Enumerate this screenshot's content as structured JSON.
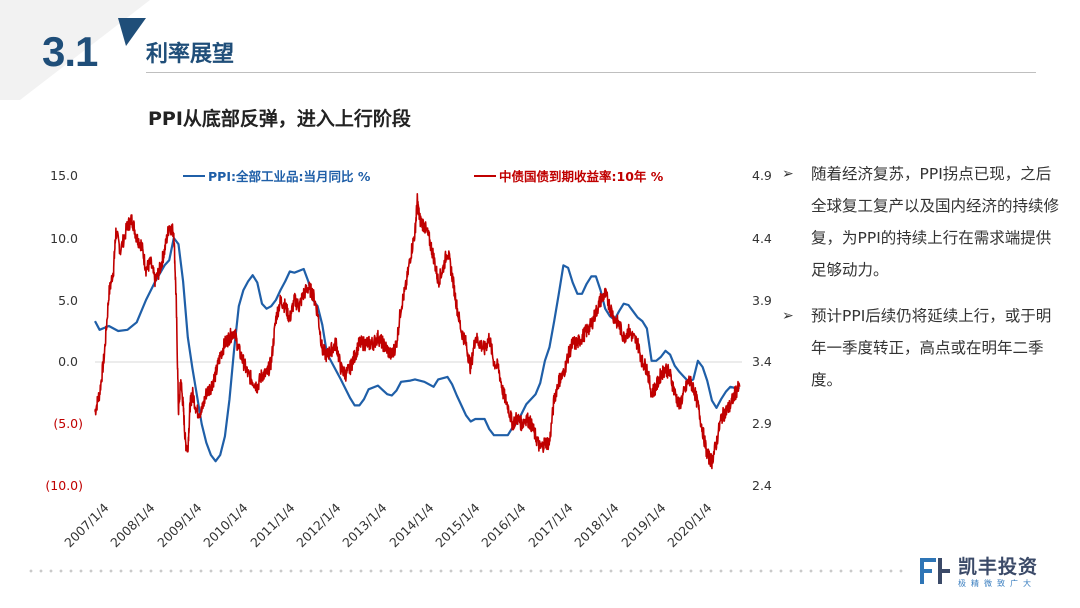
{
  "section": {
    "number": "3.1",
    "title": "利率展望"
  },
  "subtitle": "PPI从底部反弹，进入上行阶段",
  "bullets": [
    "随着经济复苏，PPI拐点已现，之后全球复工复产以及国内经济的持续修复，为PPI的持续上行在需求端提供足够动力。",
    "预计PPI后续仍将延续上行，或于明年一季度转正，高点或在明年二季度。"
  ],
  "bullet_marker": "➢",
  "logo": {
    "name": "凯丰投资",
    "tagline": "极精微致广大"
  },
  "colors": {
    "brand_blue": "#1f4e79",
    "ppi": "#1f5fa8",
    "yield": "#c00000"
  },
  "chart_data": {
    "type": "line",
    "y_left": {
      "ticks": [
        "15.0",
        "10.0",
        "5.0",
        "0.0",
        "(5.0)",
        "(10.0)"
      ],
      "range": [
        -10,
        15
      ]
    },
    "y_right": {
      "ticks": [
        "4.9",
        "4.4",
        "3.9",
        "3.4",
        "2.9",
        "2.4"
      ],
      "range": [
        2.4,
        4.9
      ]
    },
    "x_ticks": [
      "2007/1/4",
      "2008/1/4",
      "2009/1/4",
      "2010/1/4",
      "2011/1/4",
      "2012/1/4",
      "2013/1/4",
      "2014/1/4",
      "2015/1/4",
      "2016/1/4",
      "2017/1/4",
      "2018/1/4",
      "2019/1/4",
      "2020/1/4"
    ],
    "series": [
      {
        "name": "PPI:全部工业品:当月同比 %",
        "axis": "left",
        "color": "#1f5fa8",
        "points": [
          [
            2007.0,
            3.3
          ],
          [
            2007.1,
            2.6
          ],
          [
            2007.3,
            2.9
          ],
          [
            2007.5,
            2.5
          ],
          [
            2007.7,
            2.6
          ],
          [
            2007.9,
            3.2
          ],
          [
            2008.1,
            5.0
          ],
          [
            2008.3,
            6.5
          ],
          [
            2008.5,
            7.8
          ],
          [
            2008.6,
            8.2
          ],
          [
            2008.7,
            10.0
          ],
          [
            2008.8,
            9.5
          ],
          [
            2008.9,
            6.5
          ],
          [
            2009.0,
            2.0
          ],
          [
            2009.1,
            -0.5
          ],
          [
            2009.3,
            -5.0
          ],
          [
            2009.4,
            -6.5
          ],
          [
            2009.5,
            -7.5
          ],
          [
            2009.6,
            -8.0
          ],
          [
            2009.7,
            -7.5
          ],
          [
            2009.8,
            -6.0
          ],
          [
            2009.9,
            -3.0
          ],
          [
            2010.0,
            1.0
          ],
          [
            2010.1,
            4.5
          ],
          [
            2010.2,
            5.8
          ],
          [
            2010.3,
            6.5
          ],
          [
            2010.4,
            7.0
          ],
          [
            2010.5,
            6.4
          ],
          [
            2010.6,
            4.7
          ],
          [
            2010.7,
            4.3
          ],
          [
            2010.8,
            4.5
          ],
          [
            2010.9,
            5.0
          ],
          [
            2011.0,
            5.8
          ],
          [
            2011.1,
            6.5
          ],
          [
            2011.2,
            7.3
          ],
          [
            2011.3,
            7.2
          ],
          [
            2011.5,
            7.5
          ],
          [
            2011.6,
            6.5
          ],
          [
            2011.7,
            5.0
          ],
          [
            2011.8,
            4.5
          ],
          [
            2011.9,
            3.0
          ],
          [
            2012.0,
            0.7
          ],
          [
            2012.1,
            0.0
          ],
          [
            2012.3,
            -1.4
          ],
          [
            2012.5,
            -2.9
          ],
          [
            2012.6,
            -3.5
          ],
          [
            2012.7,
            -3.5
          ],
          [
            2012.8,
            -3.0
          ],
          [
            2012.9,
            -2.2
          ],
          [
            2013.1,
            -1.9
          ],
          [
            2013.3,
            -2.6
          ],
          [
            2013.4,
            -2.7
          ],
          [
            2013.5,
            -2.3
          ],
          [
            2013.6,
            -1.6
          ],
          [
            2013.8,
            -1.5
          ],
          [
            2013.9,
            -1.4
          ],
          [
            2014.1,
            -1.6
          ],
          [
            2014.3,
            -2.0
          ],
          [
            2014.4,
            -1.4
          ],
          [
            2014.6,
            -1.2
          ],
          [
            2014.7,
            -1.8
          ],
          [
            2014.8,
            -2.7
          ],
          [
            2014.9,
            -3.5
          ],
          [
            2015.0,
            -4.3
          ],
          [
            2015.1,
            -4.8
          ],
          [
            2015.2,
            -4.6
          ],
          [
            2015.4,
            -4.6
          ],
          [
            2015.5,
            -5.4
          ],
          [
            2015.6,
            -5.9
          ],
          [
            2015.8,
            -5.9
          ],
          [
            2015.9,
            -5.9
          ],
          [
            2016.0,
            -5.3
          ],
          [
            2016.1,
            -4.9
          ],
          [
            2016.3,
            -3.4
          ],
          [
            2016.5,
            -2.6
          ],
          [
            2016.6,
            -1.7
          ],
          [
            2016.7,
            0.1
          ],
          [
            2016.8,
            1.2
          ],
          [
            2016.9,
            3.3
          ],
          [
            2017.0,
            5.5
          ],
          [
            2017.1,
            7.8
          ],
          [
            2017.2,
            7.6
          ],
          [
            2017.3,
            6.4
          ],
          [
            2017.4,
            5.5
          ],
          [
            2017.5,
            5.5
          ],
          [
            2017.6,
            6.3
          ],
          [
            2017.7,
            6.9
          ],
          [
            2017.8,
            6.9
          ],
          [
            2017.9,
            5.8
          ],
          [
            2018.0,
            4.3
          ],
          [
            2018.1,
            3.7
          ],
          [
            2018.2,
            3.4
          ],
          [
            2018.3,
            4.1
          ],
          [
            2018.4,
            4.7
          ],
          [
            2018.5,
            4.6
          ],
          [
            2018.6,
            4.1
          ],
          [
            2018.7,
            3.6
          ],
          [
            2018.8,
            3.3
          ],
          [
            2018.9,
            2.7
          ],
          [
            2019.0,
            0.1
          ],
          [
            2019.1,
            0.1
          ],
          [
            2019.2,
            0.4
          ],
          [
            2019.3,
            0.9
          ],
          [
            2019.4,
            0.6
          ],
          [
            2019.5,
            -0.3
          ],
          [
            2019.6,
            -0.8
          ],
          [
            2019.7,
            -1.2
          ],
          [
            2019.8,
            -1.6
          ],
          [
            2019.9,
            -1.4
          ],
          [
            2020.0,
            0.1
          ],
          [
            2020.1,
            -0.4
          ],
          [
            2020.2,
            -1.5
          ],
          [
            2020.3,
            -3.1
          ],
          [
            2020.4,
            -3.7
          ],
          [
            2020.5,
            -3.0
          ],
          [
            2020.6,
            -2.4
          ],
          [
            2020.7,
            -2.0
          ],
          [
            2020.8,
            -2.1
          ],
          [
            2020.9,
            -2.1
          ]
        ]
      },
      {
        "name": "中债国债到期收益率:10年 %",
        "axis": "right",
        "color": "#c00000",
        "points": [
          [
            2007.0,
            3.0
          ],
          [
            2007.1,
            3.15
          ],
          [
            2007.2,
            3.45
          ],
          [
            2007.3,
            3.95
          ],
          [
            2007.4,
            4.15
          ],
          [
            2007.45,
            4.45
          ],
          [
            2007.55,
            4.3
          ],
          [
            2007.7,
            4.5
          ],
          [
            2007.8,
            4.55
          ],
          [
            2007.9,
            4.4
          ],
          [
            2008.0,
            4.35
          ],
          [
            2008.1,
            4.15
          ],
          [
            2008.2,
            4.2
          ],
          [
            2008.3,
            4.05
          ],
          [
            2008.4,
            4.15
          ],
          [
            2008.5,
            4.3
          ],
          [
            2008.6,
            4.5
          ],
          [
            2008.7,
            4.45
          ],
          [
            2008.75,
            3.9
          ],
          [
            2008.8,
            3.0
          ],
          [
            2008.85,
            3.25
          ],
          [
            2008.9,
            3.05
          ],
          [
            2008.95,
            2.75
          ],
          [
            2009.0,
            2.7
          ],
          [
            2009.05,
            3.05
          ],
          [
            2009.1,
            3.15
          ],
          [
            2009.2,
            3.0
          ],
          [
            2009.3,
            3.0
          ],
          [
            2009.4,
            3.15
          ],
          [
            2009.5,
            3.2
          ],
          [
            2009.6,
            3.3
          ],
          [
            2009.7,
            3.45
          ],
          [
            2009.8,
            3.55
          ],
          [
            2009.9,
            3.6
          ],
          [
            2010.0,
            3.65
          ],
          [
            2010.1,
            3.5
          ],
          [
            2010.2,
            3.4
          ],
          [
            2010.3,
            3.3
          ],
          [
            2010.4,
            3.25
          ],
          [
            2010.5,
            3.2
          ],
          [
            2010.6,
            3.3
          ],
          [
            2010.7,
            3.3
          ],
          [
            2010.8,
            3.4
          ],
          [
            2010.9,
            3.75
          ],
          [
            2011.0,
            3.9
          ],
          [
            2011.1,
            3.85
          ],
          [
            2011.2,
            3.75
          ],
          [
            2011.3,
            3.9
          ],
          [
            2011.4,
            3.85
          ],
          [
            2011.5,
            3.95
          ],
          [
            2011.6,
            4.0
          ],
          [
            2011.7,
            3.95
          ],
          [
            2011.8,
            3.8
          ],
          [
            2011.9,
            3.5
          ],
          [
            2012.0,
            3.45
          ],
          [
            2012.1,
            3.5
          ],
          [
            2012.2,
            3.55
          ],
          [
            2012.3,
            3.35
          ],
          [
            2012.4,
            3.3
          ],
          [
            2012.5,
            3.35
          ],
          [
            2012.6,
            3.45
          ],
          [
            2012.7,
            3.55
          ],
          [
            2012.8,
            3.55
          ],
          [
            2012.9,
            3.55
          ],
          [
            2013.0,
            3.55
          ],
          [
            2013.1,
            3.6
          ],
          [
            2013.2,
            3.55
          ],
          [
            2013.3,
            3.5
          ],
          [
            2013.4,
            3.45
          ],
          [
            2013.5,
            3.55
          ],
          [
            2013.6,
            3.85
          ],
          [
            2013.7,
            4.0
          ],
          [
            2013.8,
            4.25
          ],
          [
            2013.9,
            4.45
          ],
          [
            2013.95,
            4.7
          ],
          [
            2014.0,
            4.55
          ],
          [
            2014.1,
            4.5
          ],
          [
            2014.2,
            4.4
          ],
          [
            2014.3,
            4.25
          ],
          [
            2014.4,
            4.05
          ],
          [
            2014.5,
            4.15
          ],
          [
            2014.6,
            4.3
          ],
          [
            2014.7,
            4.1
          ],
          [
            2014.8,
            3.85
          ],
          [
            2014.9,
            3.65
          ],
          [
            2015.0,
            3.55
          ],
          [
            2015.1,
            3.35
          ],
          [
            2015.2,
            3.6
          ],
          [
            2015.3,
            3.55
          ],
          [
            2015.4,
            3.5
          ],
          [
            2015.5,
            3.6
          ],
          [
            2015.6,
            3.4
          ],
          [
            2015.7,
            3.35
          ],
          [
            2015.8,
            3.15
          ],
          [
            2015.9,
            3.05
          ],
          [
            2016.0,
            2.9
          ],
          [
            2016.1,
            2.95
          ],
          [
            2016.2,
            2.9
          ],
          [
            2016.3,
            2.95
          ],
          [
            2016.4,
            2.9
          ],
          [
            2016.5,
            2.8
          ],
          [
            2016.6,
            2.7
          ],
          [
            2016.7,
            2.75
          ],
          [
            2016.8,
            2.75
          ],
          [
            2016.9,
            3.1
          ],
          [
            2017.0,
            3.25
          ],
          [
            2017.1,
            3.3
          ],
          [
            2017.2,
            3.45
          ],
          [
            2017.3,
            3.55
          ],
          [
            2017.4,
            3.55
          ],
          [
            2017.5,
            3.6
          ],
          [
            2017.6,
            3.65
          ],
          [
            2017.7,
            3.7
          ],
          [
            2017.8,
            3.8
          ],
          [
            2017.9,
            3.9
          ],
          [
            2018.0,
            3.95
          ],
          [
            2018.1,
            3.85
          ],
          [
            2018.2,
            3.75
          ],
          [
            2018.3,
            3.7
          ],
          [
            2018.4,
            3.6
          ],
          [
            2018.5,
            3.65
          ],
          [
            2018.6,
            3.6
          ],
          [
            2018.7,
            3.55
          ],
          [
            2018.8,
            3.4
          ],
          [
            2018.9,
            3.35
          ],
          [
            2019.0,
            3.15
          ],
          [
            2019.1,
            3.2
          ],
          [
            2019.2,
            3.3
          ],
          [
            2019.3,
            3.35
          ],
          [
            2019.4,
            3.3
          ],
          [
            2019.5,
            3.15
          ],
          [
            2019.6,
            3.05
          ],
          [
            2019.7,
            3.15
          ],
          [
            2019.8,
            3.25
          ],
          [
            2019.9,
            3.2
          ],
          [
            2020.0,
            3.05
          ],
          [
            2020.1,
            2.85
          ],
          [
            2020.2,
            2.65
          ],
          [
            2020.3,
            2.6
          ],
          [
            2020.4,
            2.75
          ],
          [
            2020.5,
            2.95
          ],
          [
            2020.6,
            3.0
          ],
          [
            2020.7,
            3.05
          ],
          [
            2020.8,
            3.15
          ],
          [
            2020.9,
            3.2
          ]
        ]
      }
    ]
  }
}
